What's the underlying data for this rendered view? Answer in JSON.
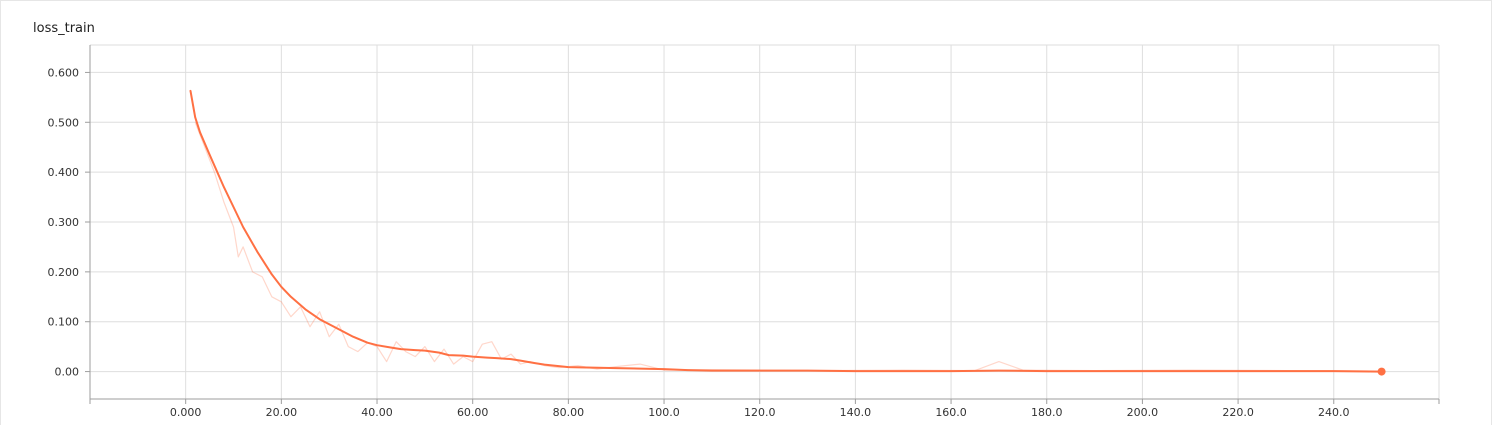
{
  "card": {
    "title": "loss_train"
  },
  "chart_data": {
    "type": "line",
    "title": "loss_train",
    "xlabel": "",
    "ylabel": "",
    "xlim": [
      -20,
      262
    ],
    "ylim": [
      -0.055,
      0.655
    ],
    "xticks": [
      0,
      20,
      40,
      60,
      80,
      100,
      120,
      140,
      160,
      180,
      200,
      220,
      240
    ],
    "xtick_labels": [
      "0.000",
      "20.00",
      "40.00",
      "60.00",
      "80.00",
      "100.0",
      "120.0",
      "140.0",
      "160.0",
      "180.0",
      "200.0",
      "220.0",
      "240.0"
    ],
    "yticks": [
      0,
      0.1,
      0.2,
      0.3,
      0.4,
      0.5,
      0.6
    ],
    "ytick_labels": [
      "0.00",
      "0.100",
      "0.200",
      "0.300",
      "0.400",
      "0.500",
      "0.600"
    ],
    "grid": true,
    "color": "#ff7043",
    "series": [
      {
        "kind": "smoothed",
        "x": [
          1,
          2,
          3,
          5,
          8,
          10,
          12,
          15,
          18,
          20,
          22,
          25,
          28,
          30,
          32,
          35,
          38,
          40,
          43,
          45,
          48,
          50,
          53,
          55,
          58,
          60,
          63,
          65,
          68,
          70,
          73,
          75,
          78,
          80,
          85,
          90,
          95,
          100,
          105,
          110,
          120,
          130,
          140,
          150,
          160,
          170,
          180,
          190,
          200,
          210,
          220,
          230,
          240,
          250
        ],
        "y": [
          0.563,
          0.51,
          0.48,
          0.435,
          0.37,
          0.33,
          0.29,
          0.24,
          0.195,
          0.17,
          0.15,
          0.125,
          0.105,
          0.095,
          0.085,
          0.07,
          0.058,
          0.053,
          0.048,
          0.045,
          0.043,
          0.042,
          0.038,
          0.033,
          0.032,
          0.03,
          0.028,
          0.027,
          0.025,
          0.022,
          0.017,
          0.014,
          0.011,
          0.009,
          0.008,
          0.007,
          0.006,
          0.005,
          0.003,
          0.002,
          0.002,
          0.002,
          0.001,
          0.001,
          0.001,
          0.002,
          0.001,
          0.001,
          0.001,
          0.001,
          0.001,
          0.001,
          0.001,
          0.0
        ]
      },
      {
        "kind": "raw",
        "x": [
          2,
          4,
          6,
          8,
          10,
          11,
          12,
          14,
          16,
          18,
          20,
          22,
          24,
          26,
          28,
          30,
          32,
          34,
          36,
          38,
          40,
          42,
          44,
          46,
          48,
          50,
          52,
          54,
          56,
          58,
          60,
          62,
          64,
          66,
          68,
          70,
          72,
          75,
          78,
          82,
          86,
          90,
          95,
          100,
          110,
          130,
          150,
          165,
          170,
          175,
          190,
          210,
          230,
          250
        ],
        "y": [
          0.5,
          0.45,
          0.4,
          0.34,
          0.29,
          0.23,
          0.25,
          0.2,
          0.19,
          0.15,
          0.14,
          0.11,
          0.13,
          0.09,
          0.12,
          0.07,
          0.095,
          0.05,
          0.04,
          0.058,
          0.05,
          0.02,
          0.06,
          0.04,
          0.03,
          0.05,
          0.02,
          0.045,
          0.015,
          0.03,
          0.02,
          0.055,
          0.06,
          0.025,
          0.035,
          0.015,
          0.02,
          0.012,
          0.008,
          0.012,
          0.005,
          0.01,
          0.015,
          0.003,
          0.004,
          0.002,
          0.003,
          0.002,
          0.02,
          0.003,
          0.002,
          0.003,
          0.002,
          0.001
        ]
      }
    ]
  }
}
